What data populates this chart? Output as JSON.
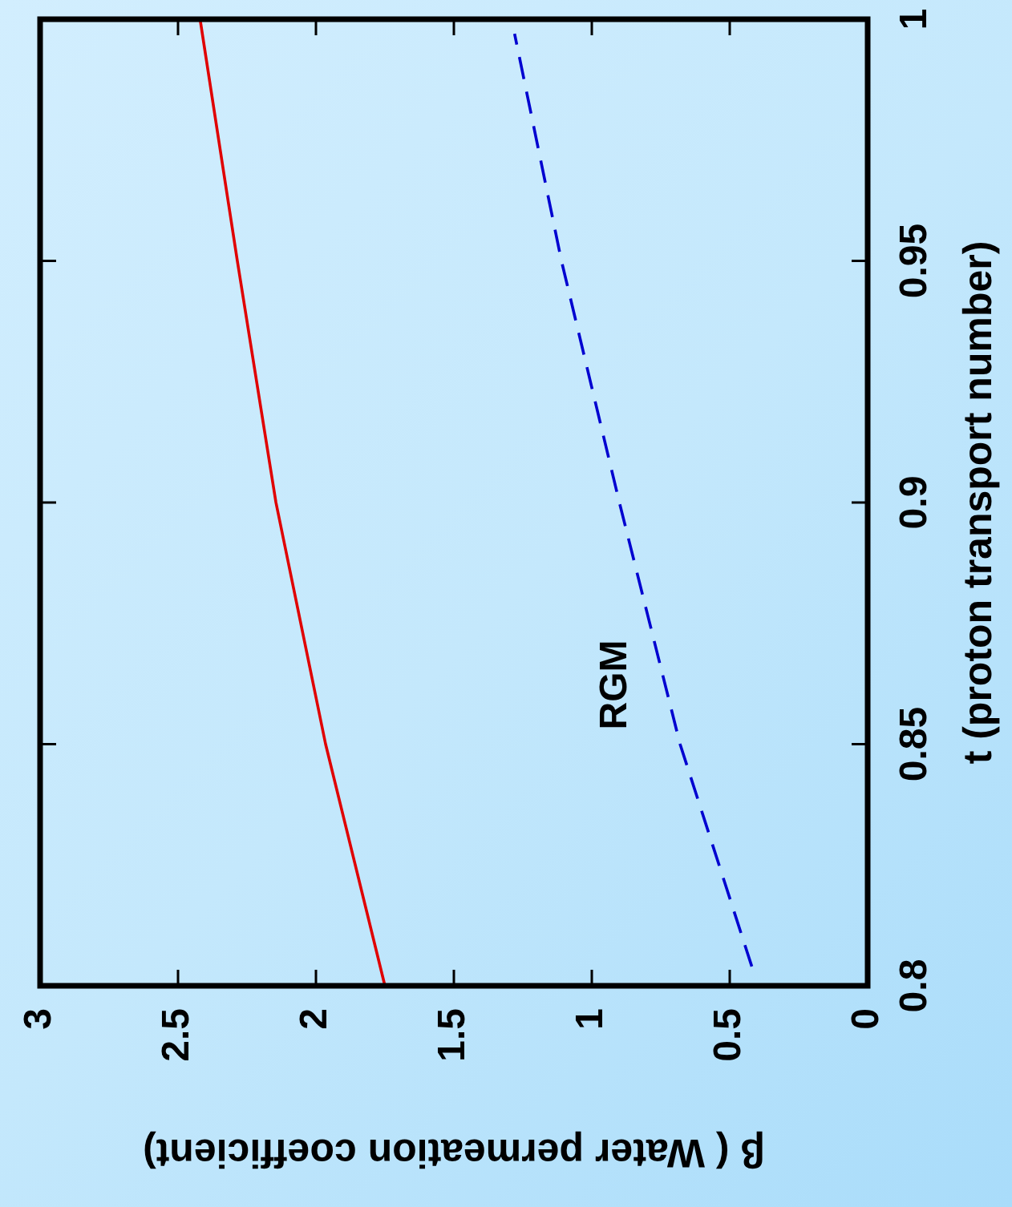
{
  "chart_data": {
    "type": "line",
    "xlabel": "β ( Water permeation coefficient)",
    "ylabel": "t (proton transport number)",
    "xlim": [
      3,
      0
    ],
    "xticks": [
      0,
      0.5,
      1,
      1.5,
      2,
      2.5,
      3
    ],
    "ylim": [
      0.8,
      1
    ],
    "yticks": [
      0.8,
      0.85,
      0.9,
      0.95,
      1
    ],
    "grid": false,
    "legend": false,
    "marker": "none",
    "series": [
      {
        "color": "#e00000",
        "line_style": "solid",
        "x": [
          1.75,
          1.965,
          2.145,
          2.285,
          2.42
        ],
        "values": [
          0.8,
          0.85,
          0.9,
          0.95,
          1
        ]
      },
      {
        "name": "RGM",
        "color": "#0000d0",
        "line_style": "dashed",
        "x": [
          0.42,
          0.68,
          0.9,
          1.11,
          1.28
        ],
        "values": [
          0.804,
          0.85,
          0.9,
          0.95,
          0.997
        ]
      }
    ]
  }
}
